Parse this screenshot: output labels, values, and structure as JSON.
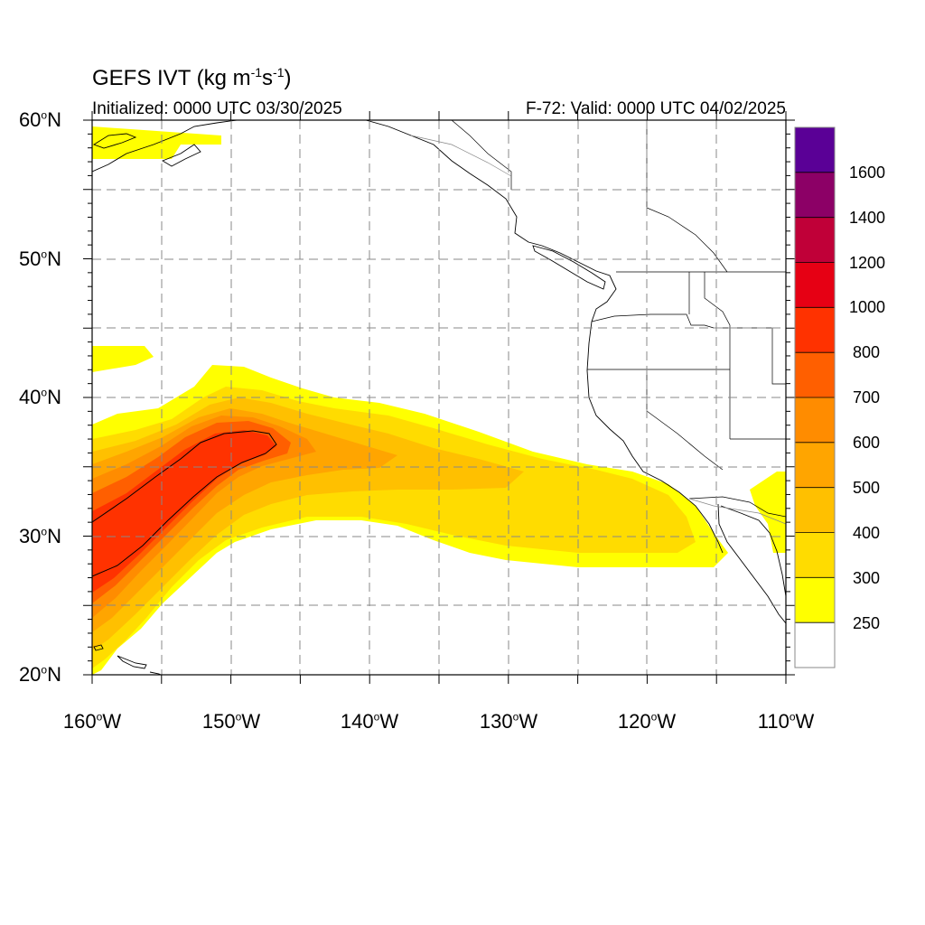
{
  "title": {
    "product": "GEFS IVT",
    "units_open": "(kg m",
    "units_exp1": "-1",
    "units_mid": "s",
    "units_exp2": "-1",
    "units_close": ")"
  },
  "init_text": "Initialized: 0000 UTC 03/30/2025",
  "valid_text": "F-72: Valid: 0000 UTC 04/02/2025",
  "degree_sup": "o",
  "lat_axis": [
    {
      "num": "60",
      "hemi": "N"
    },
    {
      "num": "50",
      "hemi": "N"
    },
    {
      "num": "40",
      "hemi": "N"
    },
    {
      "num": "30",
      "hemi": "N"
    },
    {
      "num": "20",
      "hemi": "N"
    }
  ],
  "lon_axis": [
    {
      "num": "160",
      "hemi": "W"
    },
    {
      "num": "150",
      "hemi": "W"
    },
    {
      "num": "140",
      "hemi": "W"
    },
    {
      "num": "130",
      "hemi": "W"
    },
    {
      "num": "120",
      "hemi": "W"
    },
    {
      "num": "110",
      "hemi": "W"
    }
  ],
  "colorbar": {
    "labels": [
      "1600",
      "1400",
      "1200",
      "1000",
      "800",
      "700",
      "600",
      "500",
      "400",
      "300",
      "250"
    ],
    "colors": [
      "#5a0096",
      "#8c0066",
      "#c00038",
      "#e60014",
      "#ff3200",
      "#ff5f00",
      "#ff8c00",
      "#ffa500",
      "#ffc000",
      "#ffdc00",
      "#ffff00",
      "#ffffff"
    ]
  },
  "colors": {
    "ivt_250": "#ffff00",
    "ivt_300": "#ffdc00",
    "ivt_400": "#ffc000",
    "ivt_500": "#ffa500",
    "ivt_600": "#ff8c00",
    "ivt_700": "#ff5f00",
    "ivt_800": "#ff3200",
    "ivt_1000": "#e60014",
    "grid": "#888888",
    "outline": "#000000"
  }
}
